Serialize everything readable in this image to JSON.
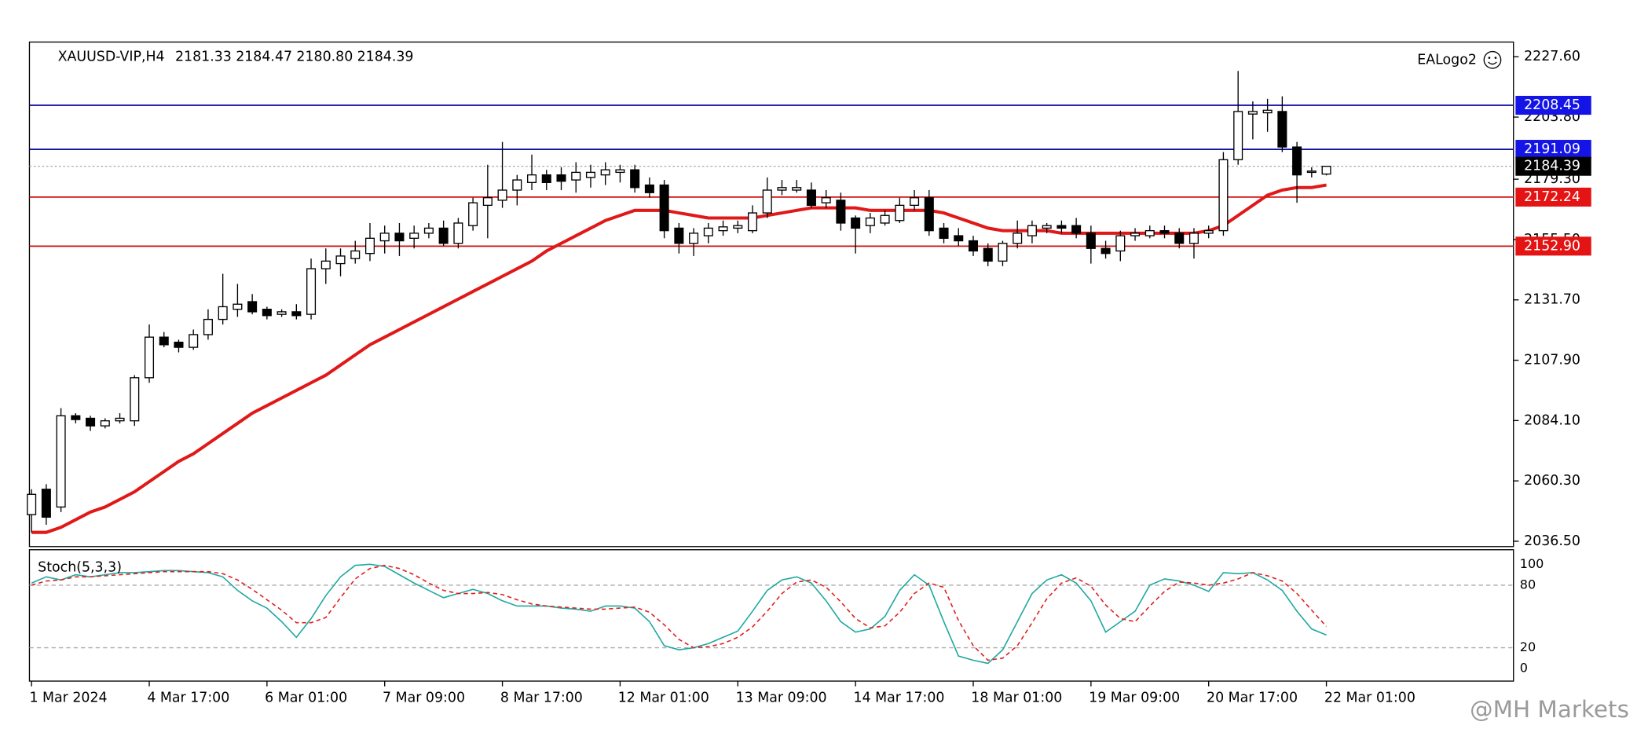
{
  "header": {
    "symbol": "XAUUSD-VIP,H4",
    "ohlc": [
      "2181.33",
      "2184.47",
      "2180.80",
      "2184.39"
    ],
    "logo": "EALogo2",
    "watermark": "@MH Markets"
  },
  "chart_data": [
    {
      "type": "candlestick",
      "categories": [
        "1 Mar 2024",
        null,
        null,
        null,
        null,
        null,
        null,
        null,
        "4 Mar 17:00",
        null,
        null,
        null,
        null,
        null,
        null,
        null,
        "6 Mar 01:00",
        null,
        null,
        null,
        null,
        null,
        null,
        null,
        "7 Mar 09:00",
        null,
        null,
        null,
        null,
        null,
        null,
        null,
        "8 Mar 17:00",
        null,
        null,
        null,
        null,
        null,
        null,
        null,
        "12 Mar 01:00",
        null,
        null,
        null,
        null,
        null,
        null,
        null,
        "13 Mar 09:00",
        null,
        null,
        null,
        null,
        null,
        null,
        null,
        "14 Mar 17:00",
        null,
        null,
        null,
        null,
        null,
        null,
        null,
        "18 Mar 01:00",
        null,
        null,
        null,
        null,
        null,
        null,
        null,
        "19 Mar 09:00",
        null,
        null,
        null,
        null,
        null,
        null,
        null,
        "20 Mar 17:00",
        null,
        null,
        null,
        null,
        null,
        null,
        null,
        "22 Mar 01:00"
      ],
      "candles": [
        [
          2047,
          2057,
          2040,
          2055
        ],
        [
          2057,
          2059,
          2043,
          2046
        ],
        [
          2050,
          2089,
          2048,
          2086
        ],
        [
          2086,
          2087,
          2083,
          2084.5
        ],
        [
          2085,
          2086,
          2080,
          2082
        ],
        [
          2082,
          2085,
          2081,
          2084
        ],
        [
          2084,
          2087,
          2083,
          2085
        ],
        [
          2084,
          2102,
          2082,
          2101
        ],
        [
          2101,
          2122,
          2099,
          2117
        ],
        [
          2117,
          2119,
          2113,
          2114
        ],
        [
          2115,
          2116,
          2111,
          2113
        ],
        [
          2113,
          2120,
          2112,
          2118
        ],
        [
          2118,
          2128,
          2116,
          2124
        ],
        [
          2124,
          2142,
          2122,
          2129
        ],
        [
          2128,
          2138,
          2125,
          2130
        ],
        [
          2131,
          2134,
          2126,
          2127
        ],
        [
          2128,
          2129,
          2124,
          2125.5
        ],
        [
          2126,
          2128,
          2125,
          2127
        ],
        [
          2127,
          2130,
          2124,
          2125.5
        ],
        [
          2126,
          2148,
          2124,
          2144
        ],
        [
          2144,
          2152,
          2138,
          2147
        ],
        [
          2146,
          2152,
          2141,
          2149
        ],
        [
          2148,
          2155,
          2146,
          2151
        ],
        [
          2150,
          2162,
          2147,
          2156
        ],
        [
          2155,
          2161,
          2150,
          2158
        ],
        [
          2158,
          2162,
          2149,
          2155
        ],
        [
          2156,
          2161,
          2152,
          2158
        ],
        [
          2158,
          2162,
          2156,
          2160
        ],
        [
          2160,
          2163,
          2153,
          2154
        ],
        [
          2154,
          2164,
          2152,
          2162
        ],
        [
          2161,
          2172,
          2159,
          2170
        ],
        [
          2169,
          2185,
          2156,
          2172
        ],
        [
          2171,
          2194,
          2168,
          2175
        ],
        [
          2175,
          2181,
          2169,
          2179
        ],
        [
          2178,
          2189,
          2175,
          2181
        ],
        [
          2181,
          2183,
          2175,
          2178
        ],
        [
          2181,
          2184,
          2175,
          2178.5
        ],
        [
          2179,
          2186,
          2174,
          2182
        ],
        [
          2180,
          2185,
          2176,
          2182
        ],
        [
          2181,
          2186,
          2177,
          2183
        ],
        [
          2182,
          2185,
          2178,
          2183
        ],
        [
          2183,
          2185,
          2174,
          2176
        ],
        [
          2177,
          2180,
          2172,
          2174
        ],
        [
          2177,
          2179,
          2156,
          2159
        ],
        [
          2160,
          2162,
          2150,
          2154
        ],
        [
          2154,
          2160,
          2149,
          2158
        ],
        [
          2157,
          2162,
          2154,
          2160
        ],
        [
          2159,
          2163,
          2157,
          2160.5
        ],
        [
          2160,
          2163,
          2158,
          2161
        ],
        [
          2159,
          2169,
          2158,
          2166
        ],
        [
          2166,
          2180,
          2164,
          2175
        ],
        [
          2175,
          2179,
          2173,
          2176
        ],
        [
          2175,
          2179,
          2174,
          2176
        ],
        [
          2175,
          2178,
          2168,
          2169
        ],
        [
          2170,
          2175,
          2168,
          2172
        ],
        [
          2171,
          2174,
          2159,
          2162
        ],
        [
          2164,
          2165,
          2150,
          2160
        ],
        [
          2161,
          2166,
          2158,
          2164
        ],
        [
          2162,
          2167,
          2161,
          2165
        ],
        [
          2163,
          2172,
          2162,
          2169
        ],
        [
          2169,
          2175,
          2167,
          2172
        ],
        [
          2172,
          2175,
          2157,
          2159
        ],
        [
          2160,
          2162,
          2154,
          2156
        ],
        [
          2157,
          2160,
          2153,
          2155
        ],
        [
          2155,
          2157,
          2149,
          2151
        ],
        [
          2152,
          2154,
          2145,
          2147
        ],
        [
          2147,
          2155,
          2145,
          2154
        ],
        [
          2154,
          2163,
          2152,
          2158
        ],
        [
          2157,
          2163,
          2154,
          2161
        ],
        [
          2160,
          2162,
          2158,
          2161
        ],
        [
          2161,
          2163,
          2158,
          2160
        ],
        [
          2161,
          2164,
          2156,
          2158
        ],
        [
          2158,
          2161,
          2146,
          2152
        ],
        [
          2152,
          2155,
          2148,
          2150
        ],
        [
          2151,
          2159,
          2147,
          2157
        ],
        [
          2157,
          2160,
          2155,
          2158
        ],
        [
          2157,
          2161,
          2156,
          2159
        ],
        [
          2159,
          2161,
          2156,
          2158
        ],
        [
          2158,
          2160,
          2152,
          2154
        ],
        [
          2154,
          2160,
          2148,
          2158
        ],
        [
          2158,
          2161,
          2156,
          2159
        ],
        [
          2159,
          2190,
          2157,
          2187
        ],
        [
          2187,
          2222,
          2185,
          2206
        ],
        [
          2205,
          2210,
          2195,
          2206
        ],
        [
          2205.5,
          2211,
          2198,
          2206.5
        ],
        [
          2206,
          2212,
          2190,
          2192
        ],
        [
          2192,
          2194,
          2170,
          2181
        ],
        [
          2182,
          2184,
          2180,
          2182.5
        ],
        [
          2181.33,
          2184.47,
          2180.8,
          2184.39
        ]
      ],
      "up_color": "#ffffff",
      "down_color": "#000000",
      "edge_color": "#000000",
      "overlays": [
        {
          "color": "#e01818",
          "values": [
            2040,
            2040,
            2042,
            2045,
            2048,
            2050,
            2053,
            2056,
            2060,
            2064,
            2068,
            2071,
            2075,
            2079,
            2083,
            2087,
            2090,
            2093,
            2096,
            2099,
            2102,
            2106,
            2110,
            2114,
            2117,
            2120,
            2123,
            2126,
            2129,
            2132,
            2135,
            2138,
            2141,
            2144,
            2147,
            2151,
            2154,
            2157,
            2160,
            2163,
            2165,
            2167,
            2167,
            2167,
            2166,
            2165,
            2164,
            2164,
            2164,
            2164,
            2165,
            2166,
            2167,
            2168,
            2168,
            2168,
            2168,
            2167,
            2167,
            2167,
            2167,
            2167,
            2166,
            2164,
            2162,
            2160,
            2159,
            2159,
            2159,
            2159,
            2158,
            2158,
            2158,
            2158,
            2158,
            2158,
            2158,
            2158,
            2158,
            2158,
            2159,
            2161,
            2165,
            2169,
            2173,
            2175,
            2176,
            2176,
            2177
          ]
        }
      ],
      "levels": [
        {
          "value": 2208.45,
          "label": "2208.45",
          "color": "#0a0aa0",
          "tag": "#1414e6"
        },
        {
          "value": 2191.09,
          "label": "2191.09",
          "color": "#0a0aa0",
          "tag": "#1414e6"
        },
        {
          "value": 2184.39,
          "label": "2184.39",
          "color": "#b0b0b0",
          "tag": "#000000",
          "dotted": true
        },
        {
          "value": 2172.24,
          "label": "2172.24",
          "color": "#d01010",
          "tag": "#e41414"
        },
        {
          "value": 2152.9,
          "label": "2152.90",
          "color": "#d01010",
          "tag": "#e41414"
        }
      ],
      "ylim": [
        2034.4,
        2233.4
      ],
      "yticks": [
        {
          "value": 2227.6,
          "label": "2227.60"
        },
        {
          "value": 2203.8,
          "label": "2203.80"
        },
        {
          "value": 2179.3,
          "label": "2179.30"
        },
        {
          "value": 2155.5,
          "label": "2155.50"
        },
        {
          "value": 2131.7,
          "label": "2131.70"
        },
        {
          "value": 2107.9,
          "label": "2107.90"
        },
        {
          "value": 2084.1,
          "label": "2084.10"
        },
        {
          "value": 2060.3,
          "label": "2060.30"
        },
        {
          "value": 2036.5,
          "label": "2036.50"
        }
      ]
    },
    {
      "type": "stochastic",
      "title": "Stoch(5,3,3)",
      "ylim": [
        -12,
        114
      ],
      "yticks": [
        0,
        20,
        80,
        100
      ],
      "series": [
        {
          "color": "#20a8a0",
          "values": [
            82,
            88,
            85,
            90,
            88,
            90,
            92,
            92,
            93,
            94,
            94,
            93,
            92,
            88,
            75,
            65,
            58,
            45,
            30,
            48,
            70,
            88,
            99,
            100,
            98,
            90,
            82,
            75,
            68,
            72,
            76,
            72,
            65,
            60,
            60,
            60,
            58,
            57,
            55,
            60,
            60,
            58,
            45,
            22,
            18,
            20,
            24,
            30,
            36,
            55,
            75,
            85,
            88,
            82,
            65,
            45,
            35,
            38,
            50,
            75,
            90,
            80,
            45,
            12,
            8,
            5,
            18,
            45,
            72,
            85,
            90,
            82,
            65,
            35,
            45,
            55,
            80,
            86,
            84,
            80,
            74,
            92,
            91,
            92,
            85,
            75,
            55,
            38,
            32.1436
          ]
        },
        {
          "color": "#e02020",
          "dashed": true,
          "values": [
            80,
            84,
            85,
            88,
            88,
            89,
            90,
            91,
            92,
            93,
            93,
            93,
            93,
            91,
            85,
            76,
            66,
            56,
            44,
            44,
            49,
            68,
            86,
            96,
            99,
            96,
            90,
            82,
            75,
            72,
            72,
            73,
            71,
            66,
            62,
            60,
            59,
            58,
            57,
            57,
            58,
            59,
            54,
            42,
            28,
            20,
            21,
            24,
            30,
            40,
            55,
            72,
            83,
            85,
            78,
            64,
            48,
            39,
            41,
            54,
            72,
            82,
            78,
            46,
            22,
            8,
            10,
            22,
            44,
            67,
            82,
            87,
            79,
            61,
            48,
            45,
            60,
            74,
            83,
            82,
            80,
            82,
            86,
            92,
            89,
            84,
            72,
            56,
            40.3961
          ]
        }
      ]
    }
  ]
}
